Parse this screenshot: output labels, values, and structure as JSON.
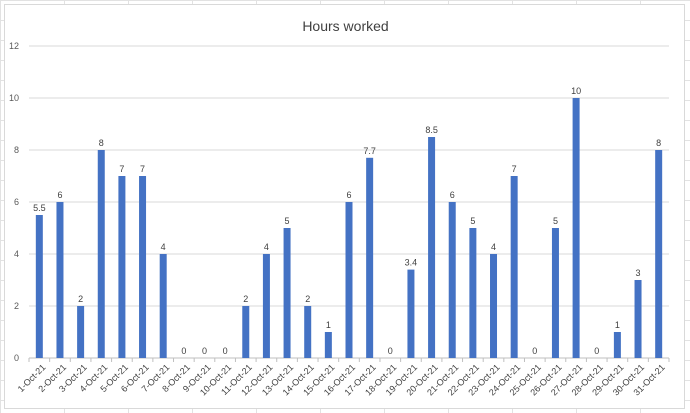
{
  "chart_data": {
    "type": "bar",
    "title": "Hours worked",
    "categories": [
      "1-Oct-21",
      "2-Oct-21",
      "3-Oct-21",
      "4-Oct-21",
      "5-Oct-21",
      "6-Oct-21",
      "7-Oct-21",
      "8-Oct-21",
      "9-Oct-21",
      "10-Oct-21",
      "11-Oct-21",
      "12-Oct-21",
      "13-Oct-21",
      "14-Oct-21",
      "15-Oct-21",
      "16-Oct-21",
      "17-Oct-21",
      "18-Oct-21",
      "19-Oct-21",
      "20-Oct-21",
      "21-Oct-21",
      "22-Oct-21",
      "23-Oct-21",
      "24-Oct-21",
      "25-Oct-21",
      "26-Oct-21",
      "27-Oct-21",
      "28-Oct-21",
      "29-Oct-21",
      "30-Oct-21",
      "31-Oct-21"
    ],
    "values": [
      5.5,
      6,
      2,
      8,
      7,
      7,
      4,
      0,
      0,
      0,
      2,
      4,
      5,
      2,
      1,
      6,
      7.7,
      0,
      3.4,
      8.5,
      6,
      5,
      4,
      7,
      0,
      5,
      10,
      0,
      1,
      3,
      8
    ],
    "ylim": [
      0,
      12
    ],
    "yticks": [
      0,
      2,
      4,
      6,
      8,
      10,
      12
    ],
    "grid": true,
    "bar_color": "#4472c4",
    "xlabel": "",
    "ylabel": ""
  }
}
